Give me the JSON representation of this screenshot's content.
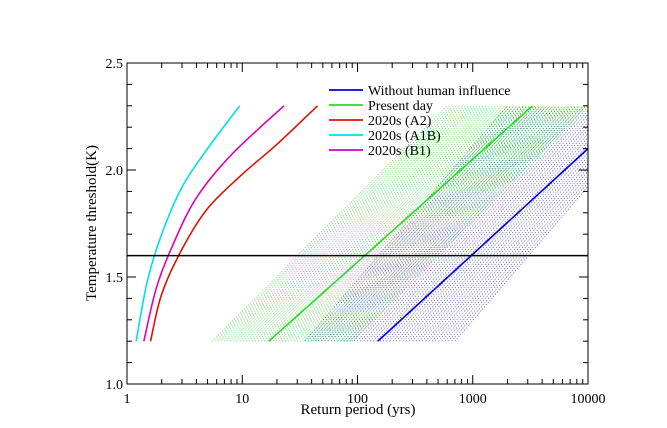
{
  "chart_data": {
    "type": "line",
    "xscale": "log",
    "xlim": [
      1,
      10000
    ],
    "ylim": [
      1.0,
      2.5
    ],
    "xlabel": "Return period (yrs)",
    "ylabel": "Temperature threshold(K)",
    "xticks": [
      1,
      10,
      100,
      1000,
      10000
    ],
    "xtick_labels": [
      "1",
      "10",
      "100",
      "1000",
      "10000"
    ],
    "yticks": [
      1.0,
      1.5,
      2.0,
      2.5
    ],
    "ytick_labels": [
      "1.0",
      "1.5",
      "2.0",
      "2.5"
    ],
    "threshold_line": {
      "y": 1.6,
      "color": "#000000"
    },
    "series": [
      {
        "name": "Without human influence",
        "color": "#0000dd",
        "points": [
          [
            150,
            1.2
          ],
          [
            10000,
            2.1
          ]
        ],
        "uncertainty": {
          "min_points": [
            [
              35,
              1.2
            ],
            [
              2000,
              2.3
            ]
          ],
          "max_points": [
            [
              700,
              1.2
            ],
            [
              10000,
              1.62
            ]
          ],
          "color": "#2a2ab0"
        }
      },
      {
        "name": "Present day",
        "color": "#22dd22",
        "points": [
          [
            17,
            1.2
          ],
          [
            3300,
            2.3
          ]
        ],
        "uncertainty": {
          "min_points": [
            [
              5.5,
              1.2
            ],
            [
              600,
              2.3
            ]
          ],
          "max_points": [
            [
              90,
              1.2
            ],
            [
              10000,
              2.12
            ]
          ],
          "color": "#33cc33"
        }
      },
      {
        "name": "2020s (A2)",
        "color": "#dd1100",
        "points": [
          [
            1.6,
            1.2
          ],
          [
            2,
            1.42
          ],
          [
            3,
            1.63
          ],
          [
            5,
            1.82
          ],
          [
            10,
            1.98
          ],
          [
            20,
            2.12
          ],
          [
            45,
            2.3
          ]
        ]
      },
      {
        "name": "2020s (A1B)",
        "color": "#00e0e0",
        "points": [
          [
            1.2,
            1.2
          ],
          [
            1.5,
            1.48
          ],
          [
            2,
            1.7
          ],
          [
            3,
            1.92
          ],
          [
            5,
            2.1
          ],
          [
            9.5,
            2.3
          ]
        ]
      },
      {
        "name": "2020s (B1)",
        "color": "#dd00bb",
        "points": [
          [
            1.4,
            1.2
          ],
          [
            1.8,
            1.45
          ],
          [
            2.5,
            1.65
          ],
          [
            4,
            1.87
          ],
          [
            8,
            2.07
          ],
          [
            23,
            2.3
          ]
        ]
      }
    ],
    "legend": [
      "Without human influence",
      "Present day",
      "2020s (A2)",
      "2020s (A1B)",
      "2020s (B1)"
    ],
    "legend_position": "top-right",
    "grid": false
  }
}
